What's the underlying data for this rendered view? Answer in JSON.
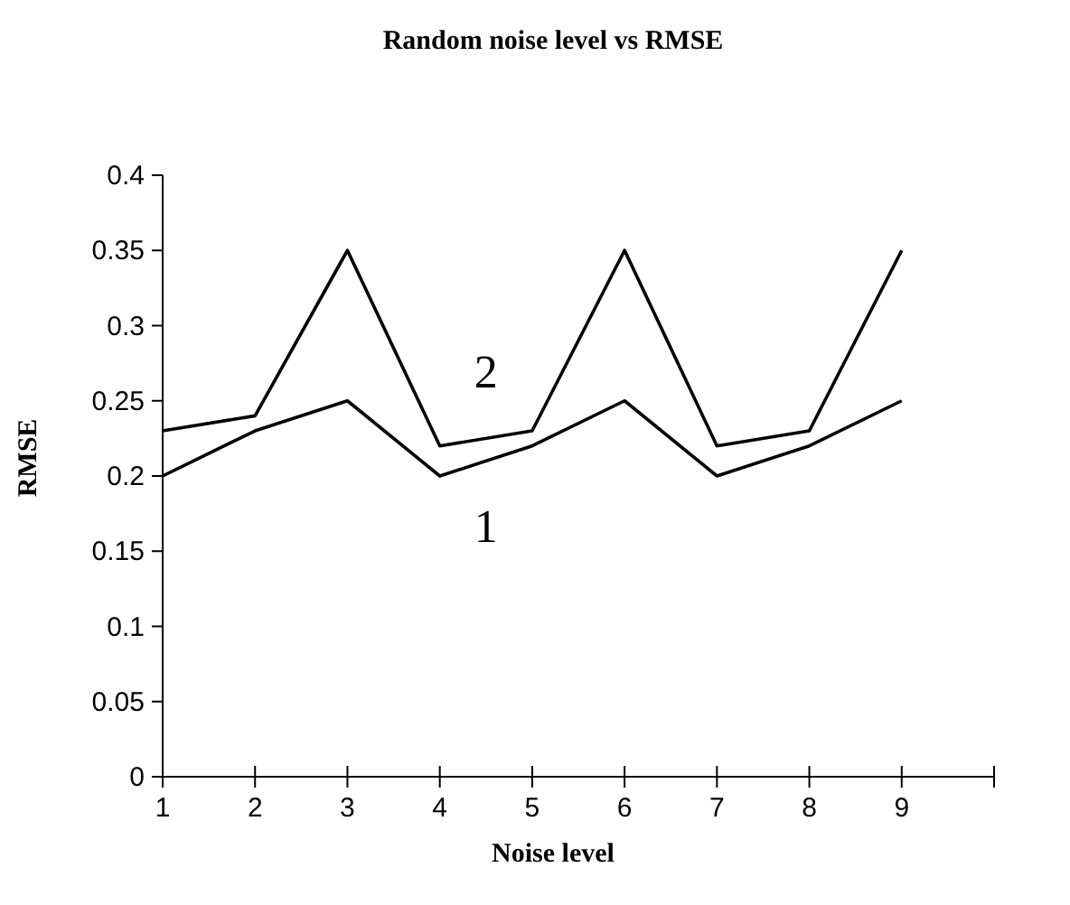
{
  "chart_data": {
    "type": "line",
    "title": "Random noise level vs RMSE",
    "xlabel": "Noise level",
    "ylabel": "RMSE",
    "x": [
      1,
      2,
      3,
      4,
      5,
      6,
      7,
      8,
      9
    ],
    "series": [
      {
        "name": "1",
        "color": "#000000",
        "values": [
          0.2,
          0.23,
          0.25,
          0.2,
          0.22,
          0.25,
          0.2,
          0.22,
          0.25
        ]
      },
      {
        "name": "2",
        "color": "#000000",
        "values": [
          0.23,
          0.24,
          0.35,
          0.22,
          0.23,
          0.35,
          0.22,
          0.23,
          0.35
        ]
      }
    ],
    "xlim": [
      1,
      10
    ],
    "xticks": [
      1,
      2,
      3,
      4,
      5,
      6,
      7,
      8,
      9,
      {
        "value": 10,
        "label": null
      }
    ],
    "ylim": [
      0,
      0.4
    ],
    "yticks": [
      0,
      0.05,
      0.1,
      0.15,
      0.2,
      0.25,
      0.3,
      0.35,
      0.4
    ],
    "grid": false,
    "marker": "none",
    "line_style": "solid"
  }
}
